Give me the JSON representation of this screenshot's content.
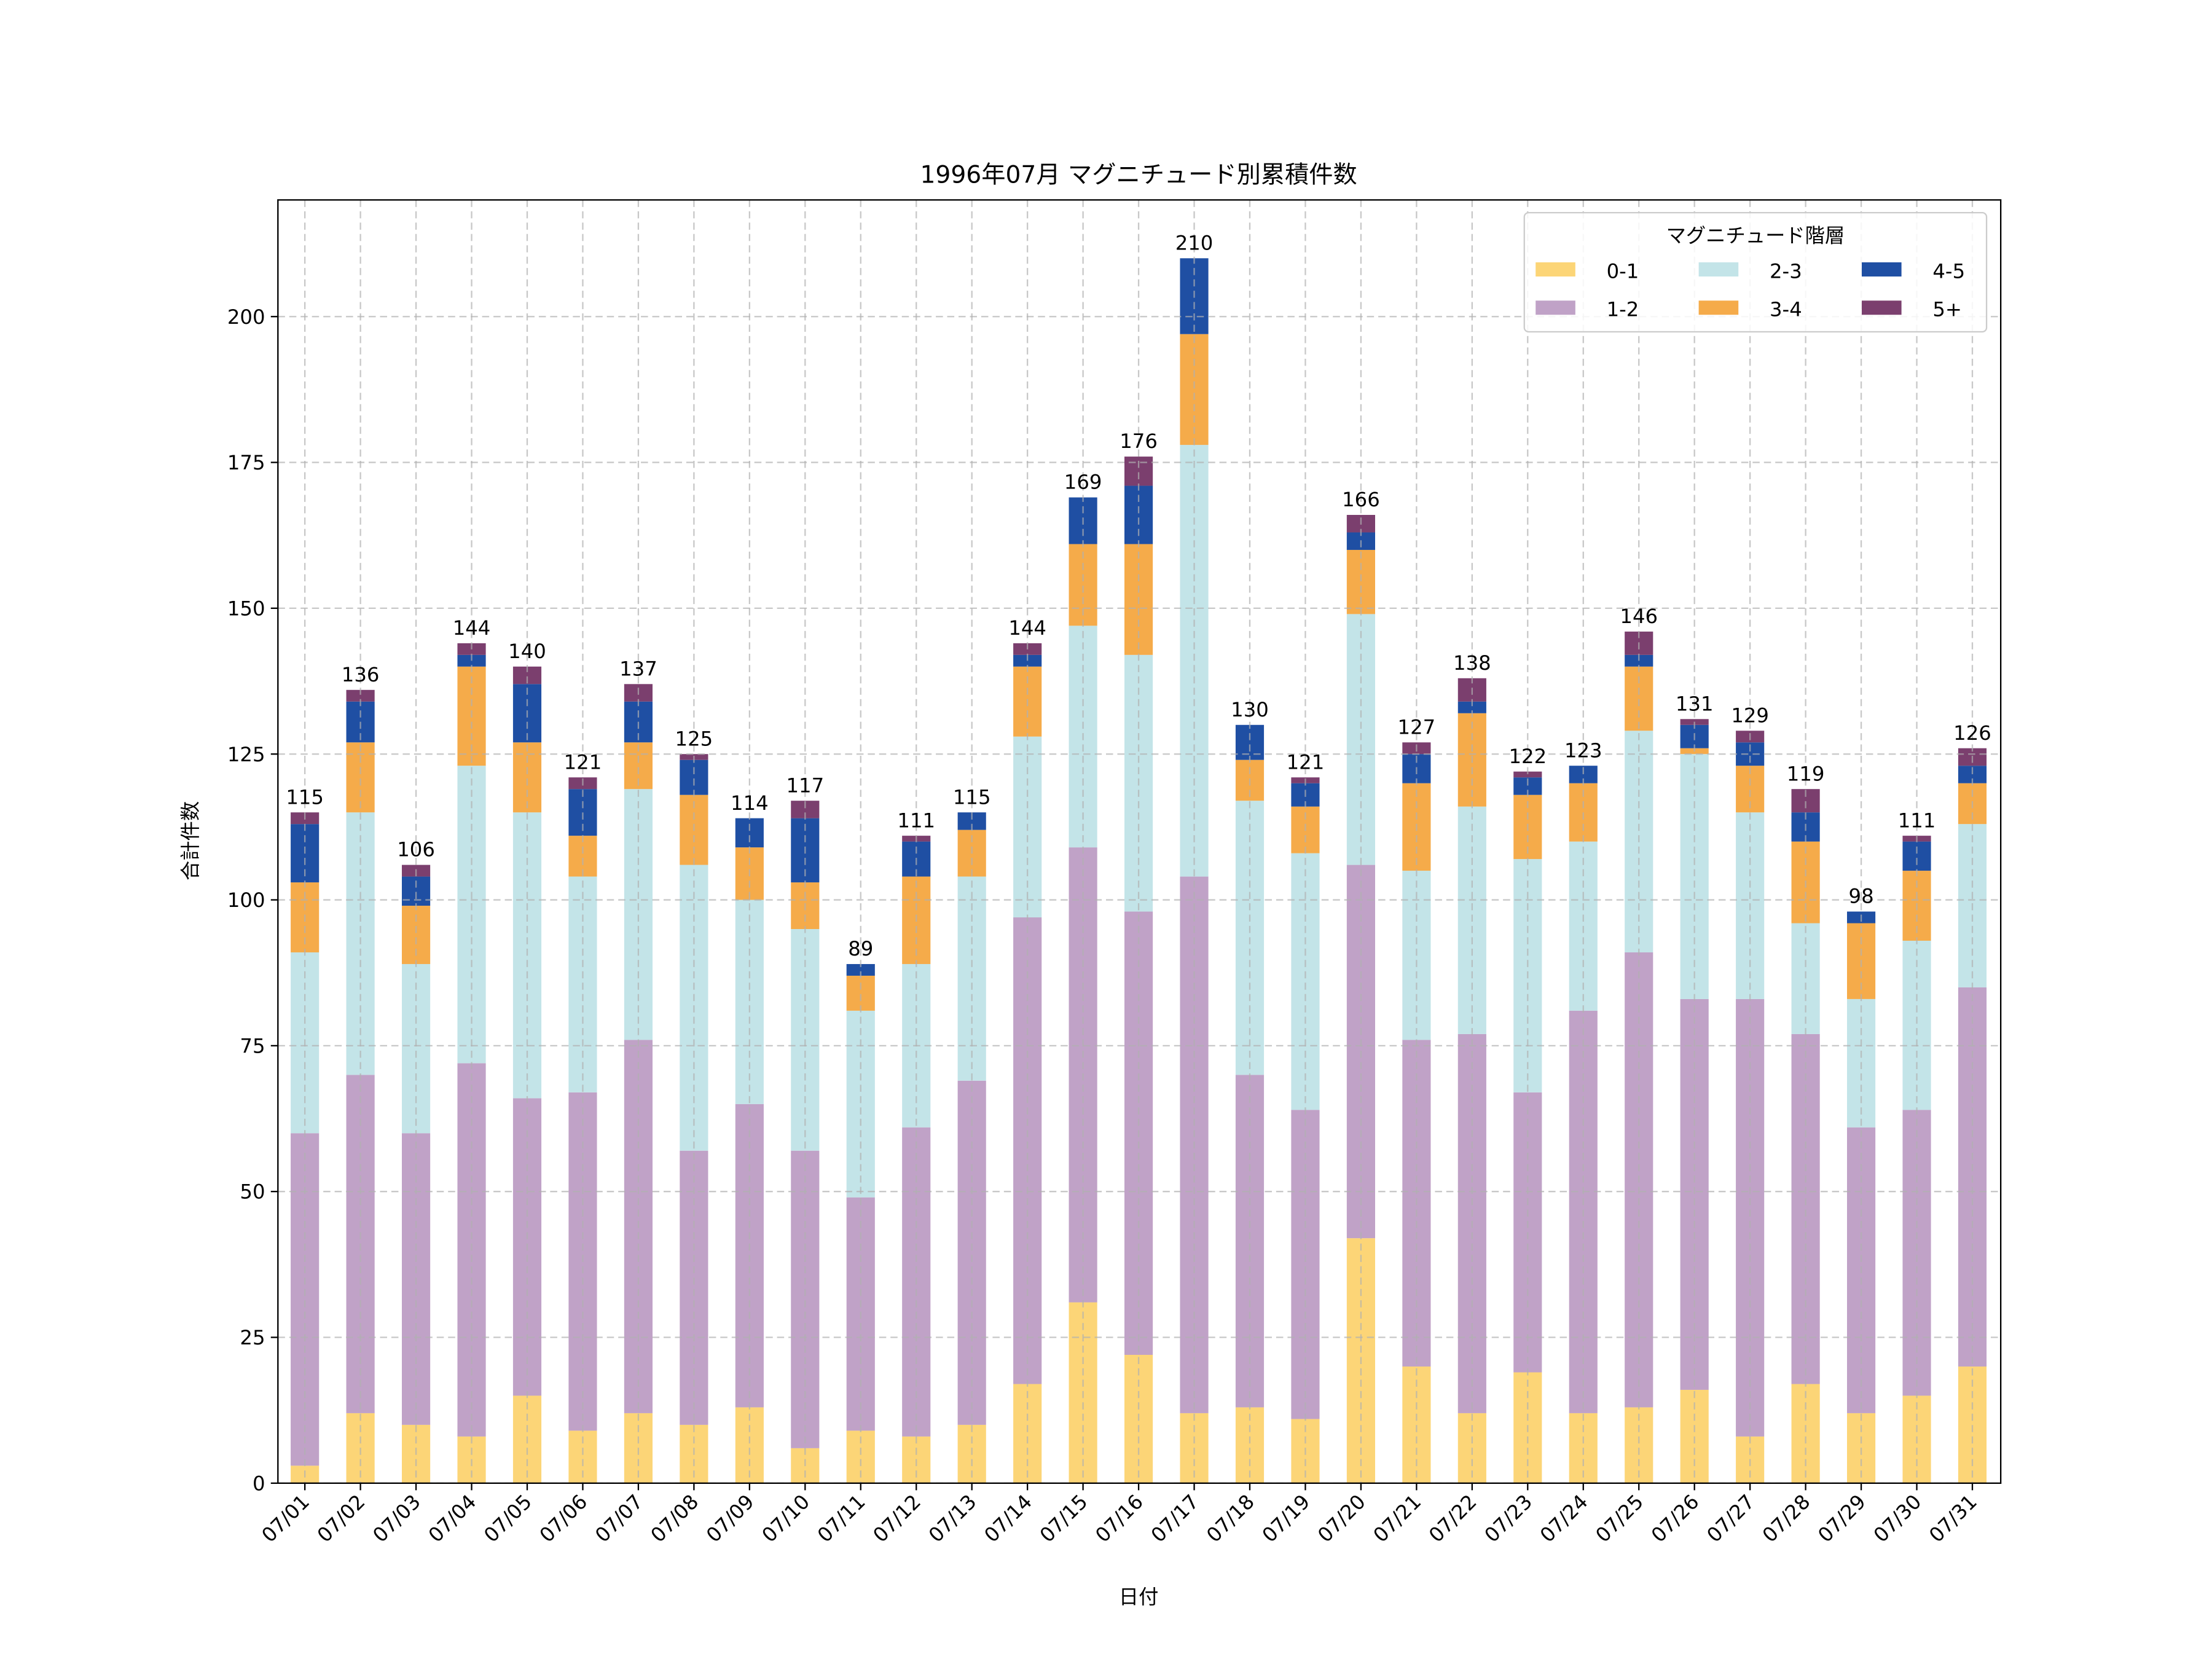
{
  "chart_data": {
    "type": "bar",
    "stacked": true,
    "title": "1996年07月 マグニチュード別累積件数",
    "xlabel": "日付",
    "ylabel": "合計件数",
    "ylim": [
      0,
      220
    ],
    "yticks": [
      0,
      25,
      50,
      75,
      100,
      125,
      150,
      175,
      200
    ],
    "grid": true,
    "legend": {
      "title": "マグニチュード階層",
      "placement": "top-right"
    },
    "categories": [
      "07/01",
      "07/02",
      "07/03",
      "07/04",
      "07/05",
      "07/06",
      "07/07",
      "07/08",
      "07/09",
      "07/10",
      "07/11",
      "07/12",
      "07/13",
      "07/14",
      "07/15",
      "07/16",
      "07/17",
      "07/18",
      "07/19",
      "07/20",
      "07/21",
      "07/22",
      "07/23",
      "07/24",
      "07/25",
      "07/26",
      "07/27",
      "07/28",
      "07/29",
      "07/30",
      "07/31"
    ],
    "totals": [
      115,
      136,
      106,
      144,
      140,
      121,
      137,
      125,
      114,
      117,
      89,
      111,
      115,
      144,
      169,
      176,
      210,
      130,
      121,
      166,
      127,
      138,
      122,
      123,
      146,
      131,
      129,
      119,
      98,
      111,
      126
    ],
    "series": [
      {
        "name": "0-1",
        "color": "#fcd577",
        "values": [
          3,
          12,
          10,
          8,
          15,
          9,
          12,
          10,
          13,
          6,
          9,
          8,
          10,
          17,
          31,
          22,
          12,
          13,
          11,
          42,
          20,
          12,
          19,
          12,
          13,
          16,
          8,
          17,
          12,
          15,
          20
        ]
      },
      {
        "name": "1-2",
        "color": "#c0a2c7",
        "values": [
          57,
          58,
          50,
          64,
          51,
          58,
          64,
          47,
          52,
          51,
          40,
          53,
          59,
          80,
          78,
          76,
          92,
          57,
          53,
          64,
          56,
          65,
          48,
          69,
          78,
          67,
          75,
          60,
          49,
          49,
          65
        ]
      },
      {
        "name": "2-3",
        "color": "#c3e4e8",
        "values": [
          31,
          45,
          29,
          51,
          49,
          37,
          43,
          49,
          35,
          38,
          32,
          28,
          35,
          31,
          38,
          44,
          74,
          47,
          44,
          43,
          29,
          39,
          40,
          29,
          38,
          42,
          32,
          19,
          22,
          29,
          28
        ]
      },
      {
        "name": "3-4",
        "color": "#f5ab4a",
        "values": [
          12,
          12,
          10,
          17,
          12,
          7,
          8,
          12,
          9,
          8,
          6,
          15,
          8,
          12,
          14,
          19,
          19,
          7,
          8,
          11,
          15,
          16,
          11,
          10,
          11,
          1,
          8,
          14,
          13,
          12,
          7
        ]
      },
      {
        "name": "4-5",
        "color": "#1f4fa3",
        "values": [
          10,
          7,
          5,
          2,
          10,
          8,
          7,
          6,
          5,
          11,
          2,
          6,
          3,
          2,
          8,
          10,
          13,
          6,
          4,
          3,
          5,
          2,
          3,
          3,
          2,
          4,
          4,
          5,
          2,
          5,
          3
        ]
      },
      {
        "name": "5+",
        "color": "#7b3f6e",
        "values": [
          2,
          2,
          2,
          2,
          3,
          2,
          3,
          1,
          0,
          3,
          0,
          1,
          0,
          2,
          0,
          5,
          0,
          0,
          1,
          3,
          2,
          4,
          1,
          0,
          4,
          1,
          2,
          4,
          0,
          1,
          3
        ]
      }
    ]
  }
}
